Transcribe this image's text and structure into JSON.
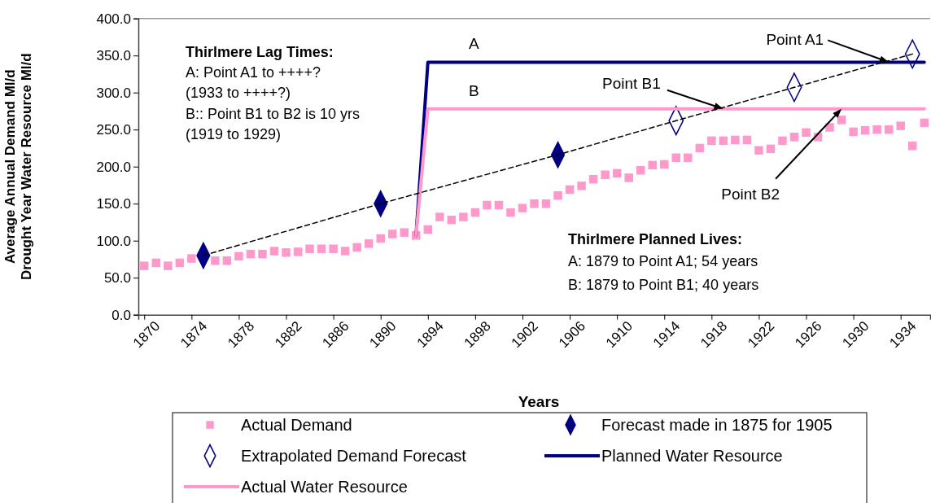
{
  "chart_data": {
    "type": "scatter",
    "xlabel": "Years",
    "ylabel": "Average Annual Demand Ml/d\nDrought Year Water Resource Ml/d",
    "x": [
      1870,
      1871,
      1872,
      1873,
      1874,
      1875,
      1876,
      1877,
      1878,
      1879,
      1880,
      1881,
      1882,
      1883,
      1884,
      1885,
      1886,
      1887,
      1888,
      1889,
      1890,
      1891,
      1892,
      1893,
      1894,
      1895,
      1896,
      1897,
      1898,
      1899,
      1900,
      1901,
      1902,
      1903,
      1904,
      1905,
      1906,
      1907,
      1908,
      1909,
      1910,
      1911,
      1912,
      1913,
      1914,
      1915,
      1916,
      1917,
      1918,
      1919,
      1920,
      1921,
      1922,
      1923,
      1924,
      1925,
      1926,
      1927,
      1928,
      1929,
      1930,
      1931,
      1932,
      1933,
      1934,
      1935,
      1936
    ],
    "xlim": [
      1869.5,
      1936.5
    ],
    "xticks": [
      1870,
      1874,
      1878,
      1882,
      1886,
      1890,
      1894,
      1898,
      1902,
      1906,
      1910,
      1914,
      1918,
      1922,
      1926,
      1930,
      1934
    ],
    "ylim": [
      0,
      400
    ],
    "yticks": [
      {
        "value": 0,
        "label": "0.0"
      },
      {
        "value": 50,
        "label": "50.0"
      },
      {
        "value": 100,
        "label": "100.0"
      },
      {
        "value": 150,
        "label": "150.0"
      },
      {
        "value": 200,
        "label": "200.0"
      },
      {
        "value": 250,
        "label": "250.0"
      },
      {
        "value": 300,
        "label": "300.0"
      },
      {
        "value": 350,
        "label": "350.0"
      },
      {
        "value": 400,
        "label": "400.0"
      }
    ],
    "grid": false,
    "legend": "bottom",
    "series": [
      {
        "name": "Actual Demand",
        "marker": "square",
        "color": "#ff99cc",
        "values": [
          66,
          70,
          66,
          70,
          76,
          null,
          73,
          73,
          79,
          82,
          82,
          86,
          84,
          85,
          89,
          89,
          89,
          86,
          91,
          96,
          103,
          109,
          111,
          107,
          115,
          132,
          128,
          132,
          138,
          148,
          148,
          138,
          144,
          150,
          150,
          161,
          169,
          174,
          183,
          189,
          191,
          185,
          195,
          202,
          203,
          212,
          212,
          225,
          235,
          235,
          236,
          236,
          222,
          224,
          235,
          240,
          246,
          240,
          253,
          263,
          247,
          249,
          250,
          250,
          255,
          228,
          259
        ]
      },
      {
        "name": "Forecast made in 1875 for 1905",
        "marker": "diamond",
        "color": "#000080",
        "x": [
          1875,
          1890,
          1905
        ],
        "values": [
          80,
          150,
          216
        ]
      },
      {
        "name": "Extrapolated Demand Forecast",
        "marker": "diamond-open",
        "color": "#000080",
        "x": [
          1915,
          1925,
          1935
        ],
        "values": [
          262,
          307,
          352
        ]
      },
      {
        "name": "Planned Water Resource",
        "type": "line",
        "marker": "none",
        "color": "#000080",
        "x": [
          1893,
          1894,
          1936
        ],
        "values": [
          108,
          341,
          341
        ]
      },
      {
        "name": "Actual Water Resource",
        "type": "line",
        "marker": "none",
        "color": "#ff99cc",
        "x": [
          1893,
          1894,
          1936
        ],
        "values": [
          108,
          278,
          278
        ]
      },
      {
        "type": "line",
        "marker": "none",
        "line_style": "dashed",
        "color": "#000000",
        "x": [
          1875,
          1890,
          1905,
          1915,
          1925,
          1935
        ],
        "values": [
          80,
          150,
          216,
          262,
          307,
          352
        ]
      }
    ],
    "annotations": [
      "Thirlmere Lag Times:",
      "A: Point A1 to ++++?",
      "(1933 to ++++?)",
      "B:: Point B1 to B2 is 10 yrs",
      "(1919 to 1929)",
      "Thirlmere Planned Lives:",
      "A: 1879 to Point A1; 54 years",
      "B: 1879 to Point B1; 40 years",
      {
        "text": "A",
        "x": 1898,
        "y": 341
      },
      {
        "text": "B",
        "x": 1898,
        "y": 278
      },
      {
        "text": "Point A1",
        "x": 1933,
        "y": 341
      },
      {
        "text": "Point B1",
        "x": 1919,
        "y": 278
      },
      {
        "text": "Point B2",
        "x": 1929,
        "y": 278
      }
    ]
  }
}
